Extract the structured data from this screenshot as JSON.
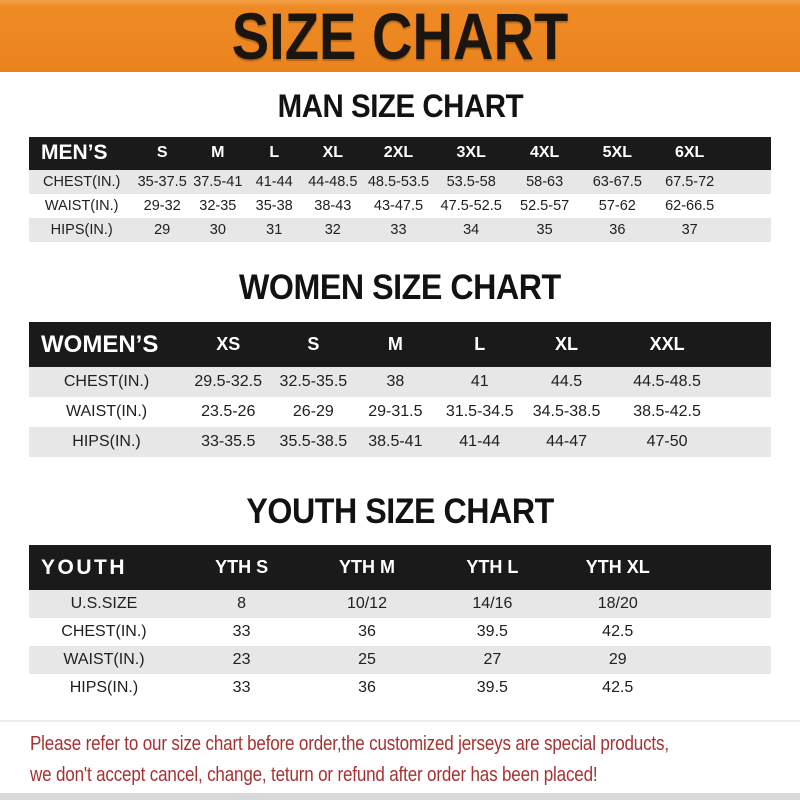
{
  "banner": {
    "title": "SIZE CHART"
  },
  "sections": [
    {
      "heading": "MAN SIZE CHART",
      "table": {
        "header": [
          "MEN’S",
          "S",
          "M",
          "L",
          "XL",
          "2XL",
          "3XL",
          "4XL",
          "5XL",
          "6XL"
        ],
        "rows": [
          [
            "CHEST(IN.)",
            "35-37.5",
            "37.5-41",
            "41-44",
            "44-48.5",
            "48.5-53.5",
            "53.5-58",
            "58-63",
            "63-67.5",
            "67.5-72"
          ],
          [
            "WAIST(IN.)",
            "29-32",
            "32-35",
            "35-38",
            "38-43",
            "43-47.5",
            "47.5-52.5",
            "52.5-57",
            "57-62",
            "62-66.5"
          ],
          [
            "HIPS(IN.)",
            "29",
            "30",
            "31",
            "32",
            "33",
            "34",
            "35",
            "36",
            "37"
          ]
        ]
      }
    },
    {
      "heading": "WOMEN SIZE CHART",
      "table": {
        "header": [
          "WOMEN’S",
          "XS",
          "S",
          "M",
          "L",
          "XL",
          "XXL"
        ],
        "rows": [
          [
            "CHEST(IN.)",
            "29.5-32.5",
            "32.5-35.5",
            "38",
            "41",
            "44.5",
            "44.5-48.5"
          ],
          [
            "WAIST(IN.)",
            "23.5-26",
            "26-29",
            "29-31.5",
            "31.5-34.5",
            "34.5-38.5",
            "38.5-42.5"
          ],
          [
            "HIPS(IN.)",
            "33-35.5",
            "35.5-38.5",
            "38.5-41",
            "41-44",
            "44-47",
            "47-50"
          ]
        ]
      }
    },
    {
      "heading": "YOUTH SIZE CHART",
      "table": {
        "header": [
          "YOUTH",
          "YTH S",
          "YTH M",
          "YTH L",
          "YTH XL"
        ],
        "rows": [
          [
            "U.S.SIZE",
            "8",
            "10/12",
            "14/16",
            "18/20"
          ],
          [
            "CHEST(IN.)",
            "33",
            "36",
            "39.5",
            "42.5"
          ],
          [
            "WAIST(IN.)",
            "23",
            "25",
            "27",
            "29"
          ],
          [
            "HIPS(IN.)",
            "33",
            "36",
            "39.5",
            "42.5"
          ]
        ]
      }
    }
  ],
  "footer": {
    "line1": "Please refer to our size chart before order,the customized jerseys are special products,",
    "line2": "we don't accept cancel, change, teturn or refund after order has been placed!"
  },
  "colors": {
    "banner_orange": "#ED8721",
    "header_black": "#1A1A1A",
    "row_gray": "#E7E7E7",
    "footer_red": "#A53231"
  }
}
